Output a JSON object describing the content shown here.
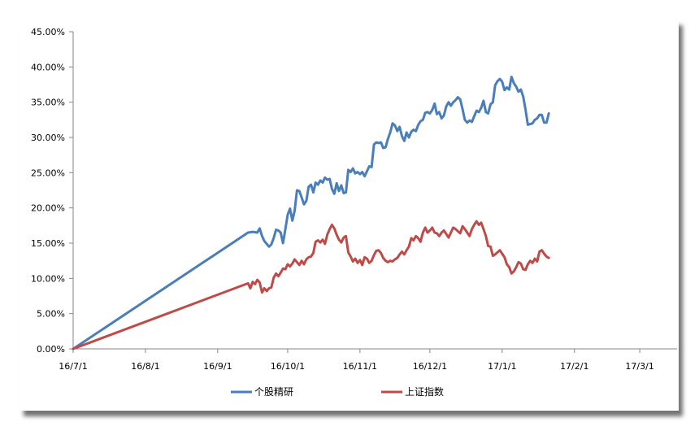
{
  "chart_data": {
    "type": "line",
    "title": "",
    "xlabel": "",
    "ylabel": "",
    "ylim": [
      0,
      0.45
    ],
    "grid": false,
    "legend_position": "bottom",
    "y_ticks": [
      "0.00%",
      "5.00%",
      "10.00%",
      "15.00%",
      "20.00%",
      "25.00%",
      "30.00%",
      "35.00%",
      "40.00%",
      "45.00%"
    ],
    "x_ticks": [
      "16/7/1",
      "16/8/1",
      "16/9/1",
      "16/10/1",
      "16/11/1",
      "16/12/1",
      "17/1/1",
      "17/2/1",
      "17/3/1"
    ],
    "x_tick_dates": [
      "2016-07-01",
      "2016-08-01",
      "2016-09-01",
      "2016-10-01",
      "2016-11-01",
      "2016-12-01",
      "2017-01-01",
      "2017-02-01",
      "2017-03-01"
    ],
    "x_range": [
      "2016-07-01",
      "2017-03-17"
    ],
    "series": [
      {
        "name": "个股精研",
        "color": "#4a7ebb",
        "points": [
          [
            "2016-07-01",
            0.0
          ],
          [
            "2016-09-14",
            0.165
          ],
          [
            "2016-09-16",
            0.166
          ],
          [
            "2016-09-18",
            0.165
          ],
          [
            "2016-09-19",
            0.171
          ],
          [
            "2016-09-20",
            0.16
          ],
          [
            "2016-09-21",
            0.153
          ],
          [
            "2016-09-23",
            0.145
          ],
          [
            "2016-09-24",
            0.148
          ],
          [
            "2016-09-25",
            0.157
          ],
          [
            "2016-09-26",
            0.169
          ],
          [
            "2016-09-27",
            0.168
          ],
          [
            "2016-09-28",
            0.165
          ],
          [
            "2016-09-29",
            0.15
          ],
          [
            "2016-09-30",
            0.17
          ],
          [
            "2016-10-01",
            0.19
          ],
          [
            "2016-10-02",
            0.199
          ],
          [
            "2016-10-03",
            0.182
          ],
          [
            "2016-10-04",
            0.196
          ],
          [
            "2016-10-05",
            0.225
          ],
          [
            "2016-10-06",
            0.224
          ],
          [
            "2016-10-07",
            0.215
          ],
          [
            "2016-10-08",
            0.205
          ],
          [
            "2016-10-09",
            0.21
          ],
          [
            "2016-10-10",
            0.23
          ],
          [
            "2016-10-11",
            0.233
          ],
          [
            "2016-10-12",
            0.222
          ],
          [
            "2016-10-13",
            0.236
          ],
          [
            "2016-10-14",
            0.233
          ],
          [
            "2016-10-15",
            0.239
          ],
          [
            "2016-10-16",
            0.236
          ],
          [
            "2016-10-17",
            0.243
          ],
          [
            "2016-10-18",
            0.24
          ],
          [
            "2016-10-19",
            0.241
          ],
          [
            "2016-10-20",
            0.227
          ],
          [
            "2016-10-21",
            0.22
          ],
          [
            "2016-10-22",
            0.235
          ],
          [
            "2016-10-23",
            0.224
          ],
          [
            "2016-10-24",
            0.232
          ],
          [
            "2016-10-25",
            0.221
          ],
          [
            "2016-10-26",
            0.222
          ],
          [
            "2016-10-27",
            0.254
          ],
          [
            "2016-10-28",
            0.251
          ],
          [
            "2016-10-29",
            0.256
          ],
          [
            "2016-10-30",
            0.249
          ],
          [
            "2016-10-31",
            0.251
          ],
          [
            "2016-11-01",
            0.248
          ],
          [
            "2016-11-02",
            0.251
          ],
          [
            "2016-11-03",
            0.245
          ],
          [
            "2016-11-04",
            0.252
          ],
          [
            "2016-11-05",
            0.259
          ],
          [
            "2016-11-06",
            0.258
          ],
          [
            "2016-11-07",
            0.29
          ],
          [
            "2016-11-08",
            0.293
          ],
          [
            "2016-11-09",
            0.292
          ],
          [
            "2016-11-10",
            0.293
          ],
          [
            "2016-11-11",
            0.285
          ],
          [
            "2016-11-12",
            0.286
          ],
          [
            "2016-11-13",
            0.298
          ],
          [
            "2016-11-14",
            0.307
          ],
          [
            "2016-11-15",
            0.32
          ],
          [
            "2016-11-16",
            0.317
          ],
          [
            "2016-11-17",
            0.309
          ],
          [
            "2016-11-18",
            0.315
          ],
          [
            "2016-11-19",
            0.302
          ],
          [
            "2016-11-20",
            0.295
          ],
          [
            "2016-11-21",
            0.307
          ],
          [
            "2016-11-22",
            0.3
          ],
          [
            "2016-11-23",
            0.308
          ],
          [
            "2016-11-24",
            0.311
          ],
          [
            "2016-11-25",
            0.309
          ],
          [
            "2016-11-26",
            0.318
          ],
          [
            "2016-11-27",
            0.323
          ],
          [
            "2016-11-28",
            0.325
          ],
          [
            "2016-11-29",
            0.335
          ],
          [
            "2016-11-30",
            0.336
          ],
          [
            "2016-12-01",
            0.334
          ],
          [
            "2016-12-02",
            0.339
          ],
          [
            "2016-12-03",
            0.348
          ],
          [
            "2016-12-04",
            0.333
          ],
          [
            "2016-12-05",
            0.336
          ],
          [
            "2016-12-06",
            0.327
          ],
          [
            "2016-12-07",
            0.331
          ],
          [
            "2016-12-08",
            0.344
          ],
          [
            "2016-12-09",
            0.35
          ],
          [
            "2016-12-10",
            0.345
          ],
          [
            "2016-12-11",
            0.35
          ],
          [
            "2016-12-12",
            0.353
          ],
          [
            "2016-12-13",
            0.357
          ],
          [
            "2016-12-14",
            0.354
          ],
          [
            "2016-12-15",
            0.34
          ],
          [
            "2016-12-16",
            0.325
          ],
          [
            "2016-12-17",
            0.321
          ],
          [
            "2016-12-18",
            0.324
          ],
          [
            "2016-12-19",
            0.322
          ],
          [
            "2016-12-20",
            0.33
          ],
          [
            "2016-12-21",
            0.338
          ],
          [
            "2016-12-22",
            0.336
          ],
          [
            "2016-12-23",
            0.342
          ],
          [
            "2016-12-24",
            0.352
          ],
          [
            "2016-12-25",
            0.336
          ],
          [
            "2016-12-26",
            0.334
          ],
          [
            "2016-12-27",
            0.347
          ],
          [
            "2016-12-28",
            0.35
          ],
          [
            "2016-12-29",
            0.374
          ],
          [
            "2016-12-30",
            0.38
          ],
          [
            "2016-12-31",
            0.383
          ],
          [
            "2017-01-01",
            0.379
          ],
          [
            "2017-01-02",
            0.367
          ],
          [
            "2017-01-03",
            0.371
          ],
          [
            "2017-01-04",
            0.368
          ],
          [
            "2017-01-05",
            0.386
          ],
          [
            "2017-01-06",
            0.377
          ],
          [
            "2017-01-07",
            0.372
          ],
          [
            "2017-01-08",
            0.365
          ],
          [
            "2017-01-09",
            0.368
          ],
          [
            "2017-01-10",
            0.358
          ],
          [
            "2017-01-11",
            0.34
          ],
          [
            "2017-01-12",
            0.318
          ],
          [
            "2017-01-13",
            0.319
          ],
          [
            "2017-01-14",
            0.32
          ],
          [
            "2017-01-15",
            0.325
          ],
          [
            "2017-01-16",
            0.327
          ],
          [
            "2017-01-17",
            0.332
          ],
          [
            "2017-01-18",
            0.332
          ],
          [
            "2017-01-19",
            0.321
          ],
          [
            "2017-01-20",
            0.321
          ],
          [
            "2017-01-21",
            0.334
          ]
        ]
      },
      {
        "name": "上证指数",
        "color": "#be4b48",
        "points": [
          [
            "2016-07-01",
            0.0
          ],
          [
            "2016-09-14",
            0.093
          ],
          [
            "2016-09-15",
            0.086
          ],
          [
            "2016-09-16",
            0.095
          ],
          [
            "2016-09-17",
            0.092
          ],
          [
            "2016-09-18",
            0.098
          ],
          [
            "2016-09-19",
            0.094
          ],
          [
            "2016-09-20",
            0.08
          ],
          [
            "2016-09-21",
            0.086
          ],
          [
            "2016-09-22",
            0.082
          ],
          [
            "2016-09-23",
            0.086
          ],
          [
            "2016-09-24",
            0.087
          ],
          [
            "2016-09-25",
            0.101
          ],
          [
            "2016-09-26",
            0.107
          ],
          [
            "2016-09-27",
            0.103
          ],
          [
            "2016-09-28",
            0.108
          ],
          [
            "2016-09-29",
            0.114
          ],
          [
            "2016-09-30",
            0.113
          ],
          [
            "2016-10-01",
            0.12
          ],
          [
            "2016-10-02",
            0.117
          ],
          [
            "2016-10-03",
            0.121
          ],
          [
            "2016-10-04",
            0.127
          ],
          [
            "2016-10-05",
            0.123
          ],
          [
            "2016-10-06",
            0.119
          ],
          [
            "2016-10-07",
            0.125
          ],
          [
            "2016-10-08",
            0.12
          ],
          [
            "2016-10-09",
            0.127
          ],
          [
            "2016-10-10",
            0.13
          ],
          [
            "2016-10-11",
            0.131
          ],
          [
            "2016-10-12",
            0.136
          ],
          [
            "2016-10-13",
            0.152
          ],
          [
            "2016-10-14",
            0.154
          ],
          [
            "2016-10-15",
            0.151
          ],
          [
            "2016-10-16",
            0.155
          ],
          [
            "2016-10-17",
            0.149
          ],
          [
            "2016-10-18",
            0.162
          ],
          [
            "2016-10-19",
            0.17
          ],
          [
            "2016-10-20",
            0.176
          ],
          [
            "2016-10-21",
            0.171
          ],
          [
            "2016-10-22",
            0.162
          ],
          [
            "2016-10-23",
            0.155
          ],
          [
            "2016-10-24",
            0.151
          ],
          [
            "2016-10-25",
            0.158
          ],
          [
            "2016-10-26",
            0.16
          ],
          [
            "2016-10-27",
            0.137
          ],
          [
            "2016-10-28",
            0.131
          ],
          [
            "2016-10-29",
            0.124
          ],
          [
            "2016-10-30",
            0.128
          ],
          [
            "2016-10-31",
            0.122
          ],
          [
            "2016-11-01",
            0.126
          ],
          [
            "2016-11-02",
            0.119
          ],
          [
            "2016-11-03",
            0.13
          ],
          [
            "2016-11-04",
            0.128
          ],
          [
            "2016-11-05",
            0.122
          ],
          [
            "2016-11-06",
            0.125
          ],
          [
            "2016-11-07",
            0.133
          ],
          [
            "2016-11-08",
            0.139
          ],
          [
            "2016-11-09",
            0.14
          ],
          [
            "2016-11-10",
            0.136
          ],
          [
            "2016-11-11",
            0.129
          ],
          [
            "2016-11-12",
            0.125
          ],
          [
            "2016-11-13",
            0.123
          ],
          [
            "2016-11-14",
            0.125
          ],
          [
            "2016-11-15",
            0.124
          ],
          [
            "2016-11-16",
            0.127
          ],
          [
            "2016-11-17",
            0.129
          ],
          [
            "2016-11-18",
            0.134
          ],
          [
            "2016-11-19",
            0.138
          ],
          [
            "2016-11-20",
            0.134
          ],
          [
            "2016-11-21",
            0.14
          ],
          [
            "2016-11-22",
            0.145
          ],
          [
            "2016-11-23",
            0.157
          ],
          [
            "2016-11-24",
            0.154
          ],
          [
            "2016-11-25",
            0.16
          ],
          [
            "2016-11-26",
            0.157
          ],
          [
            "2016-11-27",
            0.152
          ],
          [
            "2016-11-28",
            0.165
          ],
          [
            "2016-11-29",
            0.172
          ],
          [
            "2016-11-30",
            0.165
          ],
          [
            "2016-12-01",
            0.168
          ],
          [
            "2016-12-02",
            0.172
          ],
          [
            "2016-12-03",
            0.165
          ],
          [
            "2016-12-04",
            0.164
          ],
          [
            "2016-12-05",
            0.16
          ],
          [
            "2016-12-06",
            0.165
          ],
          [
            "2016-12-07",
            0.168
          ],
          [
            "2016-12-08",
            0.163
          ],
          [
            "2016-12-09",
            0.158
          ],
          [
            "2016-12-10",
            0.165
          ],
          [
            "2016-12-11",
            0.172
          ],
          [
            "2016-12-12",
            0.17
          ],
          [
            "2016-12-13",
            0.167
          ],
          [
            "2016-12-14",
            0.164
          ],
          [
            "2016-12-15",
            0.174
          ],
          [
            "2016-12-16",
            0.17
          ],
          [
            "2016-12-17",
            0.165
          ],
          [
            "2016-12-18",
            0.16
          ],
          [
            "2016-12-19",
            0.17
          ],
          [
            "2016-12-20",
            0.176
          ],
          [
            "2016-12-21",
            0.181
          ],
          [
            "2016-12-22",
            0.176
          ],
          [
            "2016-12-23",
            0.179
          ],
          [
            "2016-12-24",
            0.17
          ],
          [
            "2016-12-25",
            0.16
          ],
          [
            "2016-12-26",
            0.146
          ],
          [
            "2016-12-27",
            0.145
          ],
          [
            "2016-12-28",
            0.132
          ],
          [
            "2016-12-29",
            0.134
          ],
          [
            "2016-12-30",
            0.137
          ],
          [
            "2016-12-31",
            0.14
          ],
          [
            "2017-01-01",
            0.135
          ],
          [
            "2017-01-02",
            0.13
          ],
          [
            "2017-01-03",
            0.12
          ],
          [
            "2017-01-04",
            0.116
          ],
          [
            "2017-01-05",
            0.107
          ],
          [
            "2017-01-06",
            0.11
          ],
          [
            "2017-01-07",
            0.116
          ],
          [
            "2017-01-08",
            0.123
          ],
          [
            "2017-01-09",
            0.121
          ],
          [
            "2017-01-10",
            0.113
          ],
          [
            "2017-01-11",
            0.112
          ],
          [
            "2017-01-12",
            0.12
          ],
          [
            "2017-01-13",
            0.125
          ],
          [
            "2017-01-14",
            0.122
          ],
          [
            "2017-01-15",
            0.128
          ],
          [
            "2017-01-16",
            0.124
          ],
          [
            "2017-01-17",
            0.138
          ],
          [
            "2017-01-18",
            0.14
          ],
          [
            "2017-01-19",
            0.135
          ],
          [
            "2017-01-20",
            0.131
          ],
          [
            "2017-01-21",
            0.129
          ]
        ]
      }
    ]
  }
}
